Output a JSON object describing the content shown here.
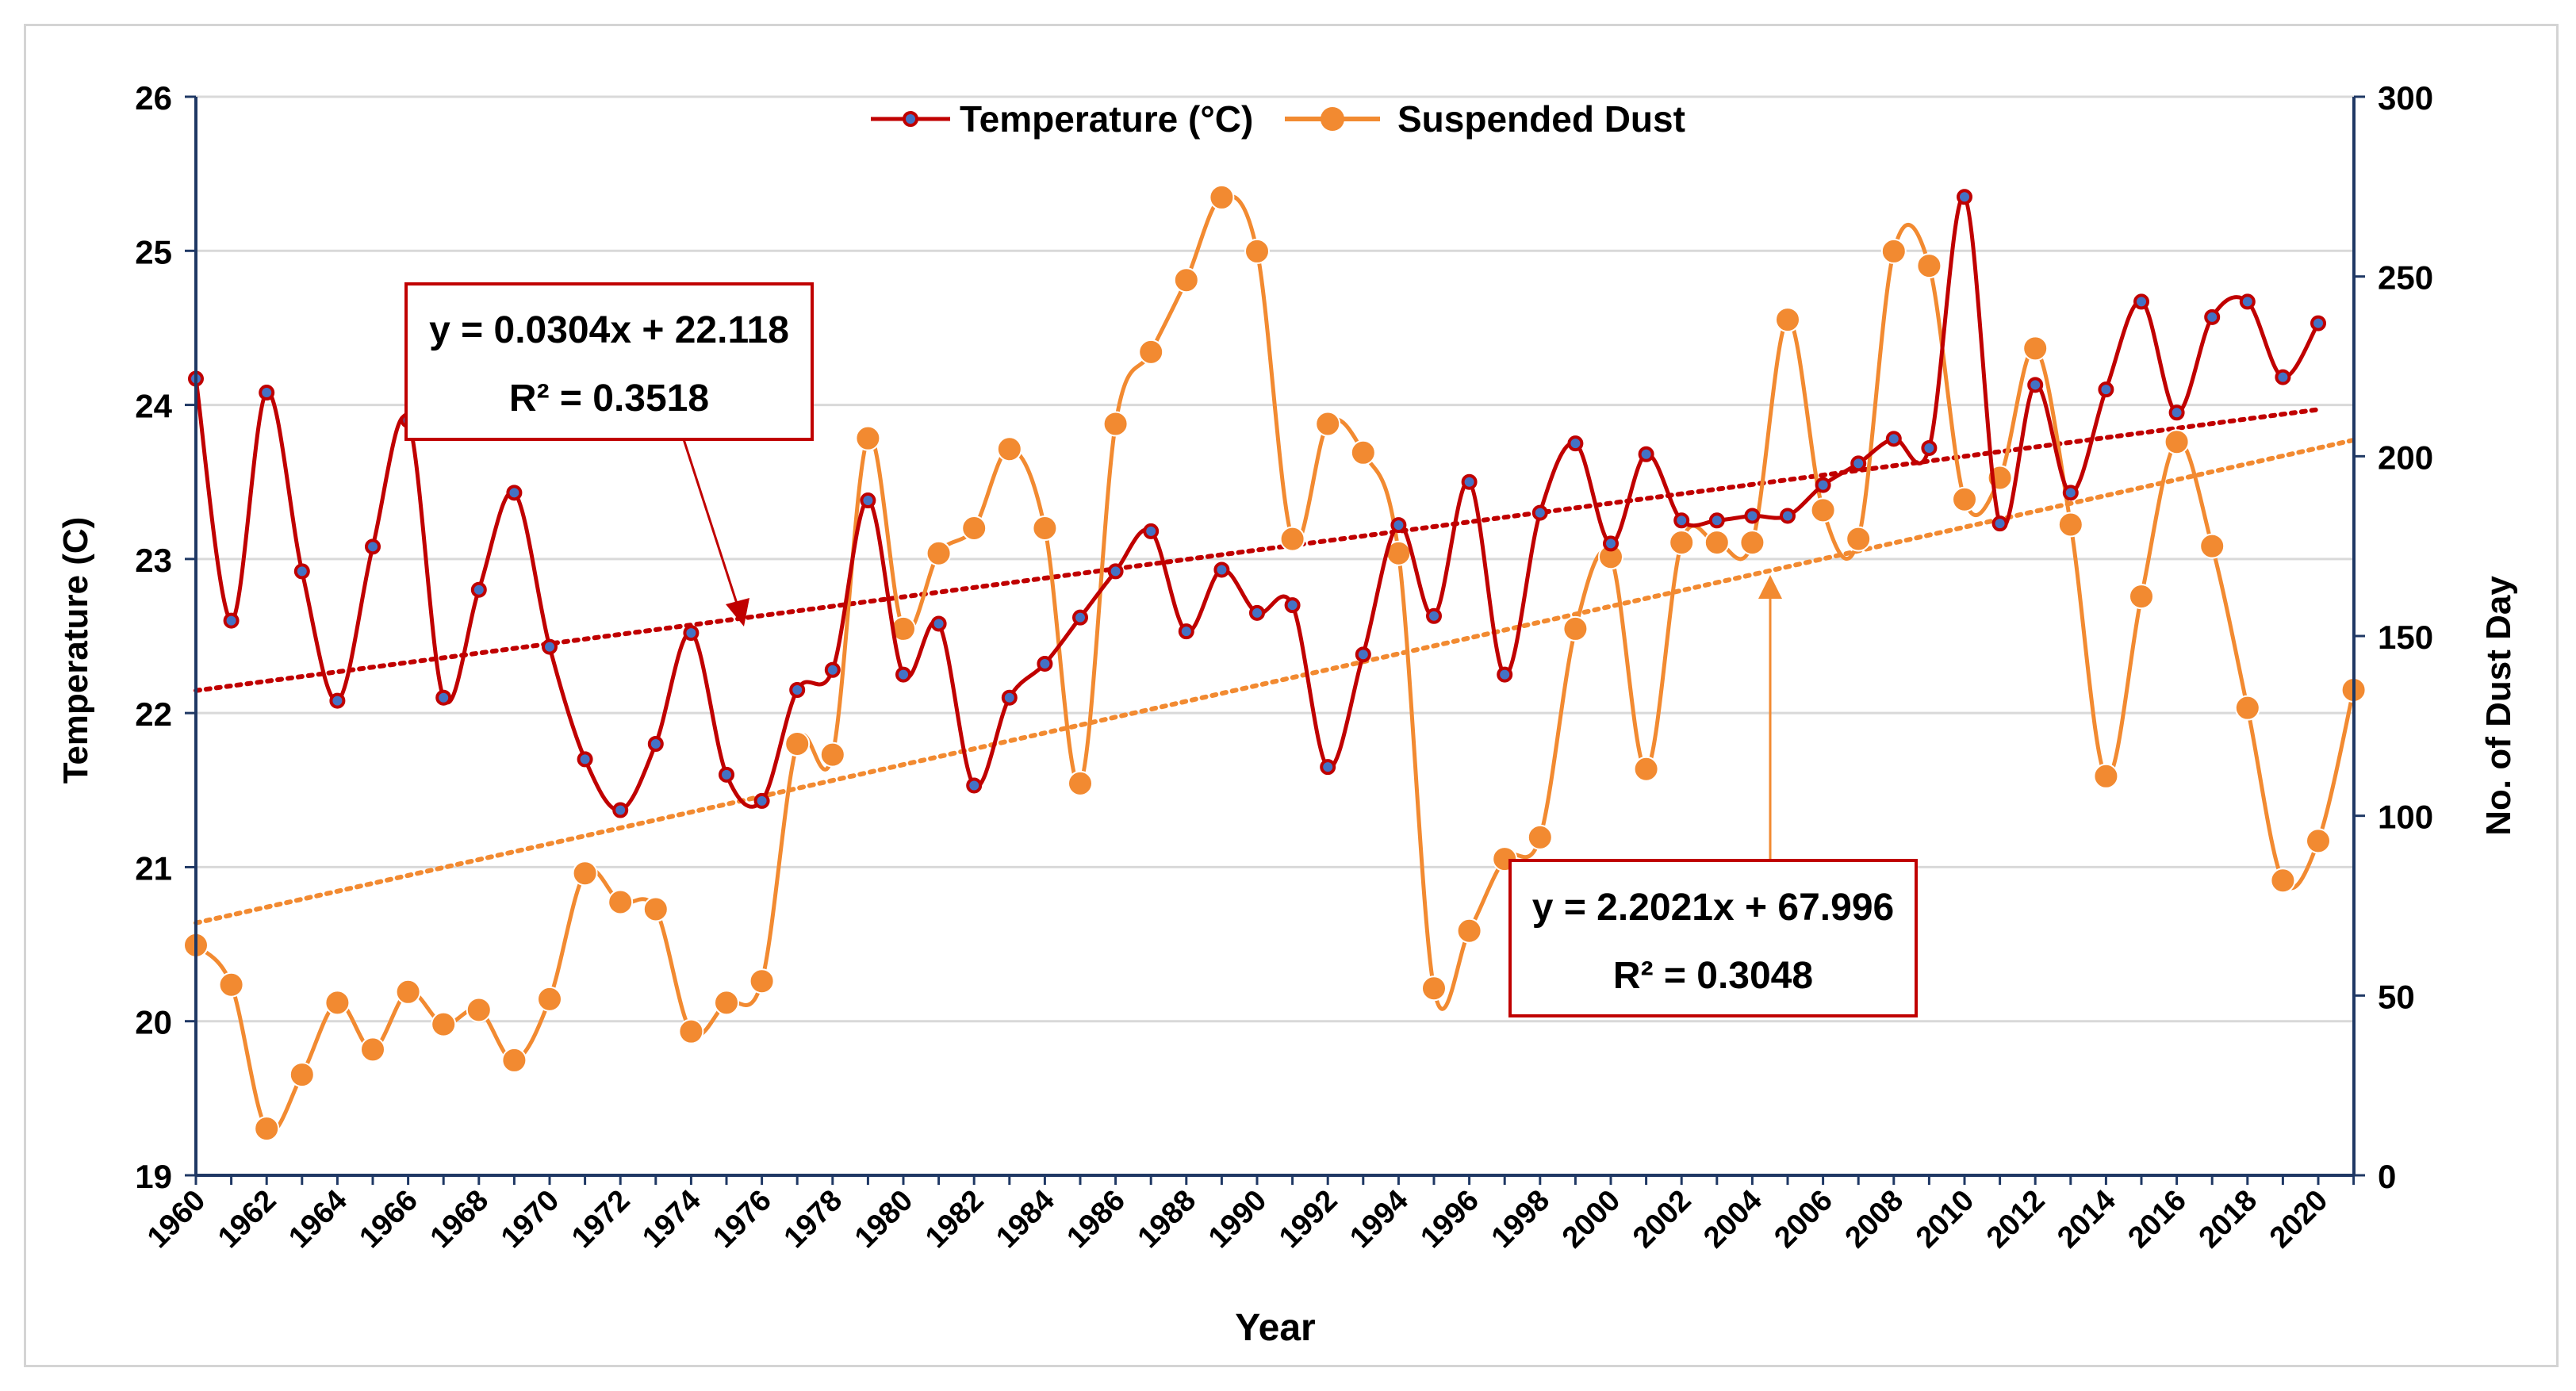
{
  "chart_data": {
    "type": "line",
    "xlabel": "Year",
    "ylabel": "Temperature (C)",
    "y2label": "No. of Dust Day",
    "ylim": [
      19,
      26
    ],
    "y2lim": [
      0,
      300
    ],
    "yticks": [
      "19",
      "20",
      "21",
      "22",
      "23",
      "24",
      "25",
      "26"
    ],
    "y2ticks": [
      "0",
      "50",
      "100",
      "150",
      "200",
      "250",
      "300"
    ],
    "xticks": [
      "1960",
      "1962",
      "1964",
      "1966",
      "1968",
      "1970",
      "1972",
      "1974",
      "1976",
      "1978",
      "1980",
      "1982",
      "1984",
      "1986",
      "1988",
      "1990",
      "1992",
      "1994",
      "1996",
      "1998",
      "2000",
      "2002",
      "2004",
      "2006",
      "2008",
      "2010",
      "2012",
      "2014",
      "2016",
      "2018",
      "2020"
    ],
    "legend_position": "top-center",
    "series": [
      {
        "name": "Temperature (°C)",
        "axis": "left",
        "color": "#c00000",
        "x": [
          1960,
          1961,
          1962,
          1963,
          1964,
          1965,
          1966,
          1967,
          1968,
          1969,
          1970,
          1971,
          1972,
          1973,
          1974,
          1975,
          1976,
          1977,
          1978,
          1979,
          1980,
          1981,
          1982,
          1983,
          1984,
          1985,
          1986,
          1987,
          1988,
          1989,
          1990,
          1991,
          1992,
          1993,
          1994,
          1995,
          1996,
          1997,
          1998,
          1999,
          2000,
          2001,
          2002,
          2003,
          2004,
          2005,
          2006,
          2007,
          2008,
          2009,
          2010,
          2011,
          2012,
          2013,
          2014,
          2015,
          2016,
          2017,
          2018,
          2019,
          2020
        ],
        "values": [
          24.17,
          22.6,
          24.08,
          22.92,
          22.08,
          23.08,
          23.9,
          22.1,
          22.8,
          23.43,
          22.43,
          21.7,
          21.37,
          21.8,
          22.52,
          21.6,
          21.43,
          22.15,
          22.28,
          23.38,
          22.25,
          22.58,
          21.53,
          22.1,
          22.32,
          22.62,
          22.92,
          23.18,
          22.53,
          22.93,
          22.65,
          22.7,
          21.65,
          22.38,
          23.22,
          22.63,
          23.5,
          22.25,
          23.3,
          23.75,
          23.1,
          23.68,
          23.25,
          23.25,
          23.28,
          23.28,
          23.48,
          23.62,
          23.78,
          23.72,
          25.35,
          23.23,
          24.13,
          23.43,
          24.1,
          24.67,
          23.95,
          24.57,
          24.67,
          24.18,
          24.53
        ]
      },
      {
        "name": "Suspended Dust",
        "axis": "right",
        "color": "#f28a31",
        "x": [
          1960,
          1961,
          1962,
          1963,
          1964,
          1965,
          1966,
          1967,
          1968,
          1969,
          1970,
          1971,
          1972,
          1973,
          1974,
          1975,
          1976,
          1977,
          1978,
          1979,
          1980,
          1981,
          1982,
          1983,
          1984,
          1985,
          1986,
          1987,
          1988,
          1989,
          1990,
          1991,
          1992,
          1993,
          1994,
          1995,
          1996,
          1997,
          1998,
          1999,
          2000,
          2001,
          2002,
          2003,
          2004,
          2005,
          2006,
          2007,
          2008,
          2009,
          2010,
          2011,
          2012,
          2013,
          2014,
          2015,
          2016,
          2017,
          2018,
          2019,
          2020,
          2021
        ],
        "values": [
          64,
          53,
          13,
          28,
          48,
          35,
          51,
          42,
          46,
          32,
          49,
          84,
          76,
          74,
          40,
          48,
          54,
          120,
          117,
          205,
          152,
          173,
          180,
          202,
          180,
          109,
          209,
          229,
          249,
          272,
          257,
          177,
          209,
          201,
          173,
          52,
          68,
          88,
          94,
          152,
          172,
          113,
          176,
          176,
          176,
          238,
          185,
          177,
          257,
          253,
          188,
          194,
          230,
          181,
          111,
          161,
          204,
          175,
          130,
          82,
          93,
          135
        ]
      }
    ],
    "trendlines": [
      {
        "series": "Temperature (°C)",
        "color": "#c00000",
        "x": [
          1960,
          2020
        ],
        "values": [
          22.146,
          23.97
        ],
        "equation": "y = 0.0304x + 22.118",
        "r2": "R² = 0.3518"
      },
      {
        "series": "Suspended Dust",
        "color": "#f28a31",
        "x": [
          1960,
          2021
        ],
        "values": [
          70.2,
          204.5
        ],
        "equation": "y = 2.2021x + 67.996",
        "r2": "R² = 0.3048"
      }
    ]
  }
}
